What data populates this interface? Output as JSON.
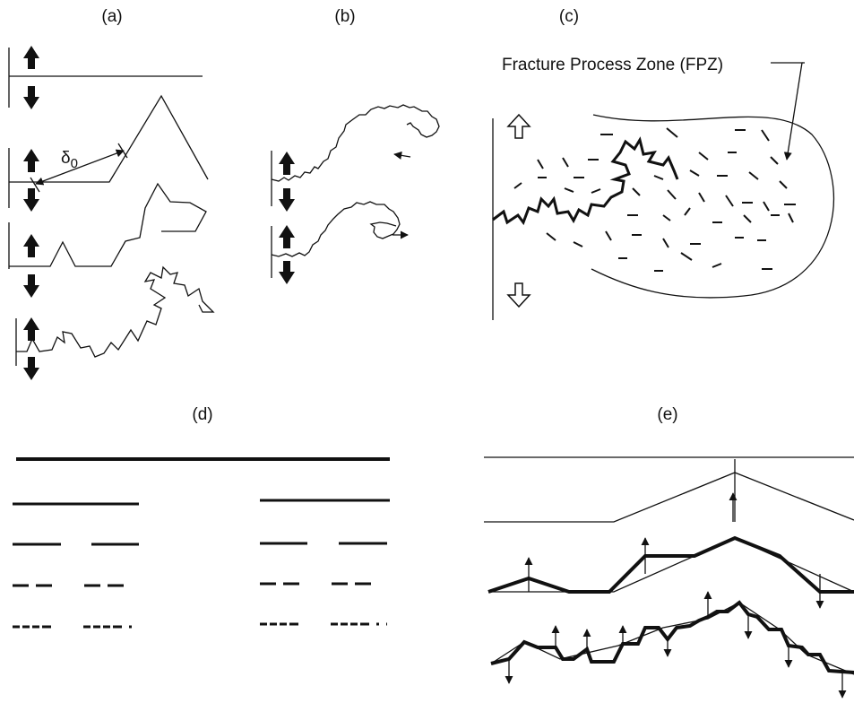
{
  "panels": {
    "a": "(a)",
    "b": "(b)",
    "c": "(c)",
    "d": "(d)",
    "e": "(e)"
  },
  "fpz_label": "Fracture Process Zone (FPZ)",
  "delta_symbol": "δ",
  "delta_subscript": "0"
}
